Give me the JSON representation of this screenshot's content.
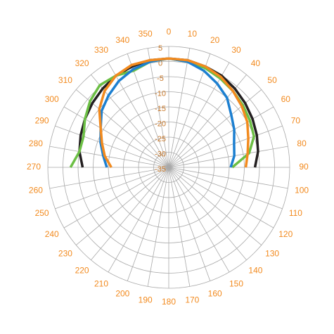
{
  "chart_data": {
    "type": "polar",
    "rlim": [
      -35,
      5
    ],
    "rticks": [
      5,
      0,
      -5,
      -10,
      -15,
      -20,
      -25,
      -30,
      -35
    ],
    "thetaticks": [
      0,
      10,
      20,
      30,
      40,
      50,
      60,
      70,
      80,
      90,
      100,
      110,
      120,
      130,
      140,
      150,
      160,
      170,
      180,
      190,
      200,
      210,
      220,
      230,
      240,
      250,
      260,
      270,
      280,
      290,
      300,
      310,
      320,
      330,
      340,
      350
    ],
    "theta_zero": "top",
    "theta_direction": "clockwise",
    "grid": true,
    "x": [
      270,
      280,
      290,
      300,
      310,
      320,
      330,
      340,
      350,
      0,
      10,
      20,
      30,
      40,
      50,
      60,
      70,
      80,
      90
    ],
    "series": [
      {
        "color": "#231f20",
        "values": [
          -6.5,
          -5,
          -4,
          -3,
          -2,
          -1,
          0,
          0.5,
          1,
          1,
          1,
          0.5,
          0,
          -1,
          -2,
          -3,
          -4,
          -5,
          -6.5
        ]
      },
      {
        "color": "#6cbf45",
        "values": [
          -2.5,
          -5,
          -5,
          -3,
          -1,
          0.5,
          0,
          -1,
          0.5,
          1,
          0.5,
          0,
          -1,
          -2,
          -3,
          -4,
          -5,
          -8,
          -14
        ]
      },
      {
        "color": "#1c7fd0",
        "values": [
          -14.5,
          -13,
          -11,
          -9,
          -6,
          -4,
          -2,
          -0.5,
          0.5,
          1,
          0.5,
          -1,
          -3,
          -5,
          -8,
          -10,
          -12,
          -13,
          -14.5
        ]
      },
      {
        "color": "#f28a1e",
        "values": [
          -16,
          -13.5,
          -11.5,
          -9,
          -5,
          -2,
          0,
          1,
          1,
          1,
          1,
          0.5,
          -0.5,
          -2,
          -3.5,
          -5,
          -7,
          -8.5,
          -9.5
        ]
      }
    ]
  }
}
